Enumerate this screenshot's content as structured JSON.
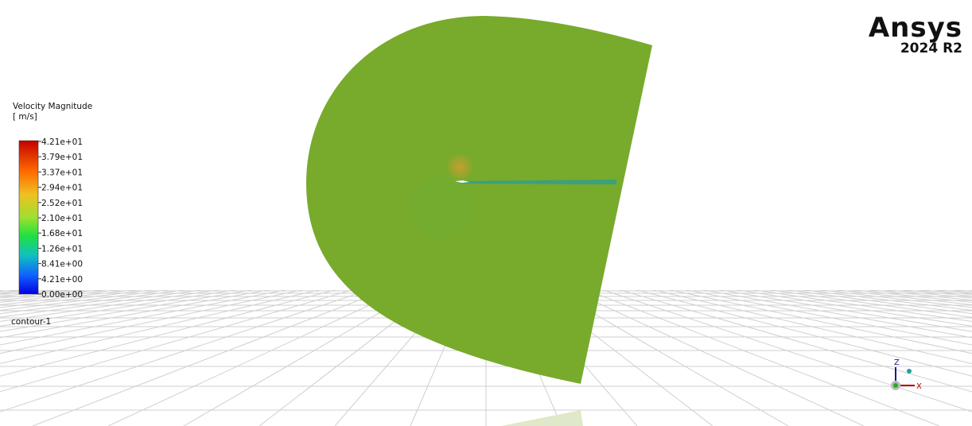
{
  "legend": {
    "title": "Velocity Magnitude",
    "unit": "[ m/s]",
    "ticks": [
      "4.21e+01",
      "3.79e+01",
      "3.37e+01",
      "2.94e+01",
      "2.52e+01",
      "2.10e+01",
      "1.68e+01",
      "1.26e+01",
      "8.41e+00",
      "4.21e+00",
      "0.00e+00"
    ]
  },
  "contour_name": "contour-1",
  "logo": {
    "brand": "Ansys",
    "version": "2024 R2"
  },
  "triad": {
    "z": "Z",
    "x": "X"
  }
}
